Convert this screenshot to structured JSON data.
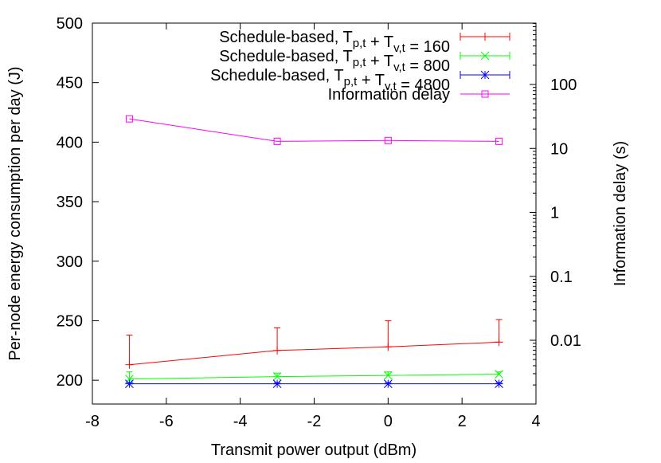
{
  "chart_data": {
    "type": "line",
    "xlabel": "Transmit power output (dBm)",
    "ylabel": "Per-node energy consumption per day (J)",
    "y2label": "Information delay (s)",
    "xlim": [
      -8,
      4
    ],
    "ylim": [
      180,
      500
    ],
    "y2scale": "log",
    "x_ticks": [
      -8,
      -6,
      -4,
      -2,
      0,
      2,
      4
    ],
    "y_ticks": [
      200,
      250,
      300,
      350,
      400,
      450,
      500
    ],
    "y2_ticks": [
      {
        "value": 100,
        "label": "100"
      },
      {
        "value": 10,
        "label": "10"
      },
      {
        "value": 1,
        "label": "1"
      },
      {
        "value": 0.1,
        "label": "0.1"
      },
      {
        "value": 0.01,
        "label": "0.01"
      }
    ],
    "legend_position": "top-right",
    "x": [
      -7,
      -3,
      0,
      3
    ],
    "series": [
      {
        "name": "Schedule-based, T_{p,t} + T_{v,t} = 160",
        "legend_main": "Schedule-based, T",
        "legend_sub1": "p,t",
        "legend_mid": " + T",
        "legend_sub2": "v,t",
        "legend_tail": " = 160",
        "color": "#ff0000",
        "marker": "plus",
        "axis": "left",
        "values": [
          213,
          225,
          228,
          232
        ],
        "err_high": [
          238,
          244,
          250,
          251
        ]
      },
      {
        "name": "Schedule-based, T_{p,t} + T_{v,t} = 800",
        "legend_main": "Schedule-based, T",
        "legend_sub1": "p,t",
        "legend_mid": " + T",
        "legend_sub2": "v,t",
        "legend_tail": " = 800",
        "color": "#00ff00",
        "marker": "cross",
        "axis": "left",
        "values": [
          201,
          203,
          204,
          205
        ],
        "err_high": [
          207,
          206,
          207,
          207
        ]
      },
      {
        "name": "Schedule-based, T_{p,t} + T_{v,t} = 4800",
        "legend_main": "Schedule-based, T",
        "legend_sub1": "p,t",
        "legend_mid": " + T",
        "legend_sub2": "v,t",
        "legend_tail": " = 4800",
        "color": "#0000ff",
        "marker": "star",
        "axis": "left",
        "values": [
          197,
          197,
          197,
          197
        ],
        "err_high": [
          198,
          198,
          198,
          198
        ]
      },
      {
        "name": "Information delay",
        "legend_main": "Information delay",
        "legend_sub1": "",
        "legend_mid": "",
        "legend_sub2": "",
        "legend_tail": "",
        "color": "#ff00ff",
        "marker": "square",
        "axis": "right",
        "values": [
          29,
          12.9,
          13.3,
          12.9
        ]
      }
    ]
  }
}
